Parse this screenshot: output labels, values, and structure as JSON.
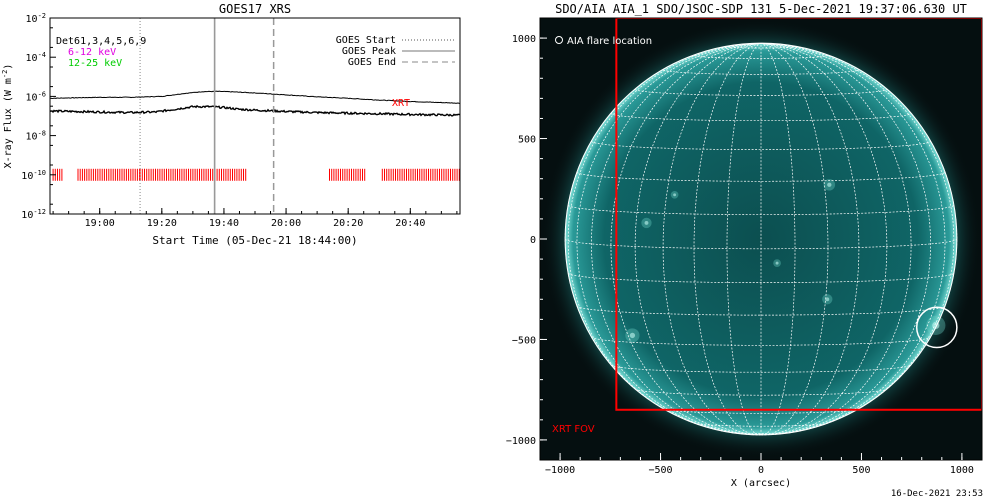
{
  "goes_panel": {
    "title": "GOES17 XRS",
    "ylabel_main": "X-ray Flux (W m",
    "ylabel_sup": "-2",
    "ylabel_close": ")",
    "xlabel": "Start Time (05-Dec-21 18:44:00)",
    "det_label": "Det61,3,4,5,6,9",
    "band_low": "6-12 keV",
    "band_high": "12-25 keV",
    "legend": {
      "start": "GOES Start",
      "peak": "GOES Peak",
      "end": "GOES End"
    },
    "xrt_label": "XRT",
    "colors": {
      "band_low": "#e000e0",
      "band_high": "#00cc00",
      "xrt": "#ff0000"
    }
  },
  "aia_panel": {
    "title": "SDO/AIA AIA_1 SDO/JSOC-SDP 131  5-Dec-2021 19:37:06.630 UT",
    "flare_label": "AIA flare location",
    "fov_label": "XRT FOV",
    "xlabel": "X (arcsec)",
    "footer": "16-Dec-2021 23:53",
    "colors": {
      "fov": "#ff0000",
      "disk": "#0f6b6b",
      "bg": "#050f10"
    }
  },
  "chart_data": [
    {
      "type": "line",
      "title": "GOES17 XRS",
      "xlabel": "Start Time (05-Dec-21 18:44:00)",
      "ylabel": "X-ray Flux (W m^-2)",
      "yscale": "log",
      "xlim": [
        "18:44",
        "20:56"
      ],
      "ylim": [
        1e-12,
        0.01
      ],
      "x_ticks": [
        "19:00",
        "19:20",
        "19:40",
        "20:00",
        "20:20",
        "20:40"
      ],
      "y_ticks": [
        "10^-12",
        "10^-10",
        "10^-8",
        "10^-6",
        "10^-4",
        "10^-2"
      ],
      "series": [
        {
          "name": "6-12 keV",
          "x": [
            "18:44",
            "19:00",
            "19:10",
            "19:20",
            "19:27",
            "19:33",
            "19:38",
            "19:43",
            "19:50",
            "20:00",
            "20:10",
            "20:20",
            "20:30",
            "20:40",
            "20:56"
          ],
          "values": [
            8e-07,
            9e-07,
            9e-07,
            1e-06,
            1.4e-06,
            1.75e-06,
            1.8e-06,
            1.7e-06,
            1.5e-06,
            1.2e-06,
            9.5e-07,
            8e-07,
            6.5e-07,
            5.5e-07,
            4.5e-07
          ]
        },
        {
          "name": "12-25 keV",
          "x": [
            "18:44",
            "19:00",
            "19:10",
            "19:18",
            "19:25",
            "19:30",
            "19:35",
            "19:40",
            "19:45",
            "19:50",
            "20:00",
            "20:10",
            "20:20",
            "20:30",
            "20:40",
            "20:56"
          ],
          "values": [
            1.8e-07,
            1.6e-07,
            1.5e-07,
            1.6e-07,
            2.3e-07,
            3e-07,
            3e-07,
            2.7e-07,
            2.2e-07,
            2e-07,
            1.7e-07,
            1.5e-07,
            1.4e-07,
            1.3e-07,
            1.2e-07,
            1.1e-07
          ]
        }
      ],
      "markers": {
        "GOES Start": "19:13",
        "GOES Peak": "19:37",
        "GOES End": "19:56"
      },
      "xrt_intervals": [
        [
          "18:45",
          "18:48"
        ],
        [
          "18:53",
          "19:13"
        ],
        [
          "19:13",
          "19:47"
        ],
        [
          "20:14",
          "20:26"
        ],
        [
          "20:31",
          "20:56"
        ]
      ]
    },
    {
      "type": "scatter",
      "title": "SDO/AIA AIA_1 SDO/JSOC-SDP 131  5-Dec-2021 19:37:06.630 UT",
      "xlabel": "X (arcsec)",
      "ylabel": "",
      "xlim": [
        -1100,
        1100
      ],
      "ylim": [
        -1100,
        1100
      ],
      "x_ticks": [
        -1000,
        -500,
        0,
        500,
        1000
      ],
      "y_ticks": [
        -1000,
        -500,
        0,
        500,
        1000
      ],
      "flare_location": {
        "x": 875,
        "y": -440
      },
      "xrt_fov": {
        "x": [
          -720,
          1100
        ],
        "y": [
          -850,
          1100
        ]
      },
      "solar_radius_arcsec": 975
    }
  ]
}
